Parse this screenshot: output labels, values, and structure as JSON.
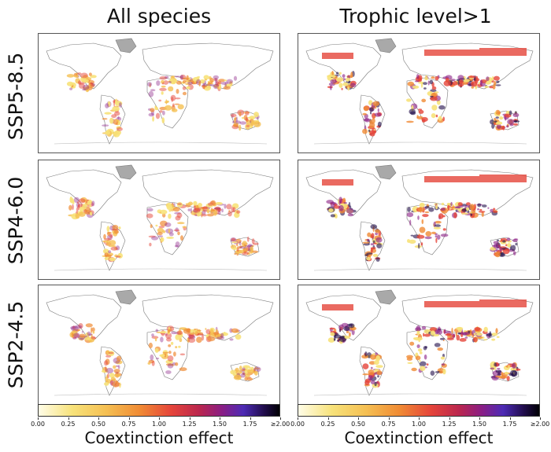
{
  "columns": [
    "All species",
    "Trophic level>1"
  ],
  "rows": [
    "SSP5-8.5",
    "SSP4-6.0",
    "SSP2-4.5"
  ],
  "colorbar": {
    "label": "Coextinction effect",
    "ticks": [
      "0.00",
      "0.25",
      "0.50",
      "0.75",
      "1.00",
      "1.25",
      "1.50",
      "1.75",
      "≥2.00"
    ]
  },
  "colors": {
    "greenland_gray": "#a9a9a9",
    "low": "#f7e27a",
    "mid": "#f08b34",
    "high": "#e5453a",
    "very_high": "#4d2bb5",
    "max": "#000004"
  }
}
